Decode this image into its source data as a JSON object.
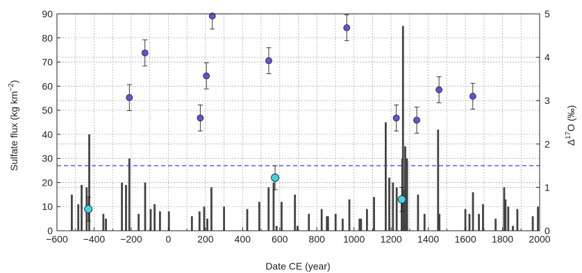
{
  "chart_data": {
    "type": "bar",
    "xlabel": "Date CE (year)",
    "ylabel_left": "Sulfate flux (kg km",
    "ylabel_left_sup": "−2",
    "ylabel_left_end": ")",
    "ylabel_right_delta": "Δ",
    "ylabel_right_sup": "17",
    "ylabel_right_end": "O (‰)",
    "xlim": [
      -600,
      2000
    ],
    "ylim_left": [
      0,
      90
    ],
    "ylim_right": [
      0,
      5
    ],
    "x_ticks": [
      "−600",
      "−400",
      "−200",
      "0",
      "200",
      "400",
      "600",
      "800",
      "1000",
      "1200",
      "1400",
      "1600",
      "1800",
      "2000"
    ],
    "x_tick_values": [
      -600,
      -400,
      -200,
      0,
      200,
      400,
      600,
      800,
      1000,
      1200,
      1400,
      1600,
      1800,
      2000
    ],
    "y_left_ticks": [
      "0",
      "10",
      "20",
      "30",
      "40",
      "50",
      "60",
      "70",
      "80",
      "90"
    ],
    "y_left_tick_values": [
      0,
      10,
      20,
      30,
      40,
      50,
      60,
      70,
      80,
      90
    ],
    "y_right_ticks": [
      "0",
      "1",
      "2",
      "3",
      "4",
      "5"
    ],
    "y_right_tick_values": [
      0,
      1,
      2,
      3,
      4,
      5
    ],
    "grid": true,
    "threshold_line": {
      "value": 27,
      "color": "#3b3bd6",
      "style": "dashed"
    },
    "colors": {
      "bars": "#444444",
      "purple_points": "#6a4fd4",
      "cyan_points": "#3fd3e6",
      "grid": "#aaaaaa"
    },
    "sulfate_bars": [
      {
        "x": -520,
        "y": 15
      },
      {
        "x": -485,
        "y": 11
      },
      {
        "x": -467,
        "y": 19
      },
      {
        "x": -440,
        "y": 18
      },
      {
        "x": -426,
        "y": 40
      },
      {
        "x": -350,
        "y": 7
      },
      {
        "x": -336,
        "y": 5
      },
      {
        "x": -250,
        "y": 20
      },
      {
        "x": -228,
        "y": 19
      },
      {
        "x": -210,
        "y": 30
      },
      {
        "x": -160,
        "y": 7
      },
      {
        "x": -125,
        "y": 20
      },
      {
        "x": -95,
        "y": 9
      },
      {
        "x": -74,
        "y": 11
      },
      {
        "x": -45,
        "y": 8
      },
      {
        "x": 3,
        "y": 8
      },
      {
        "x": 127,
        "y": 6
      },
      {
        "x": 168,
        "y": 8
      },
      {
        "x": 193,
        "y": 10
      },
      {
        "x": 210,
        "y": 5
      },
      {
        "x": 232,
        "y": 18
      },
      {
        "x": 300,
        "y": 10
      },
      {
        "x": 425,
        "y": 9
      },
      {
        "x": 490,
        "y": 12
      },
      {
        "x": 540,
        "y": 18
      },
      {
        "x": 567,
        "y": 20
      },
      {
        "x": 583,
        "y": 2
      },
      {
        "x": 610,
        "y": 12
      },
      {
        "x": 682,
        "y": 15
      },
      {
        "x": 696,
        "y": 2
      },
      {
        "x": 757,
        "y": 7
      },
      {
        "x": 826,
        "y": 9
      },
      {
        "x": 854,
        "y": 6
      },
      {
        "x": 860,
        "y": 6
      },
      {
        "x": 901,
        "y": 7
      },
      {
        "x": 939,
        "y": 5
      },
      {
        "x": 975,
        "y": 13
      },
      {
        "x": 1030,
        "y": 5
      },
      {
        "x": 1038,
        "y": 5
      },
      {
        "x": 1070,
        "y": 9
      },
      {
        "x": 1108,
        "y": 14
      },
      {
        "x": 1171,
        "y": 45
      },
      {
        "x": 1190,
        "y": 22
      },
      {
        "x": 1210,
        "y": 20
      },
      {
        "x": 1230,
        "y": 18
      },
      {
        "x": 1257,
        "y": 13
      },
      {
        "x": 1260,
        "y": 30
      },
      {
        "x": 1264,
        "y": 85
      },
      {
        "x": 1268,
        "y": 17
      },
      {
        "x": 1276,
        "y": 35
      },
      {
        "x": 1285,
        "y": 30
      },
      {
        "x": 1286,
        "y": 29
      },
      {
        "x": 1345,
        "y": 15
      },
      {
        "x": 1380,
        "y": 7
      },
      {
        "x": 1453,
        "y": 42
      },
      {
        "x": 1460,
        "y": 7
      },
      {
        "x": 1600,
        "y": 9
      },
      {
        "x": 1622,
        "y": 7
      },
      {
        "x": 1641,
        "y": 16
      },
      {
        "x": 1673,
        "y": 7
      },
      {
        "x": 1695,
        "y": 11
      },
      {
        "x": 1763,
        "y": 5
      },
      {
        "x": 1809,
        "y": 18
      },
      {
        "x": 1816,
        "y": 13
      },
      {
        "x": 1831,
        "y": 10
      },
      {
        "x": 1856,
        "y": 2
      },
      {
        "x": 1880,
        "y": 9
      },
      {
        "x": 1963,
        "y": 6
      },
      {
        "x": 1991,
        "y": 10
      }
    ],
    "d17o_points": [
      {
        "x": -210,
        "y": 3.07,
        "err": 0.3
      },
      {
        "x": -126,
        "y": 4.1,
        "err": 0.3
      },
      {
        "x": 172,
        "y": 2.6,
        "err": 0.3
      },
      {
        "x": 205,
        "y": 3.57,
        "err": 0.3
      },
      {
        "x": 237,
        "y": 4.95,
        "err": 0.3
      },
      {
        "x": 541,
        "y": 3.92,
        "err": 0.3
      },
      {
        "x": 961,
        "y": 4.68,
        "err": 0.3
      },
      {
        "x": 1228,
        "y": 2.6,
        "err": 0.3
      },
      {
        "x": 1338,
        "y": 2.55,
        "err": 0.3
      },
      {
        "x": 1458,
        "y": 3.25,
        "err": 0.3
      },
      {
        "x": 1640,
        "y": 3.1,
        "err": 0.3
      }
    ],
    "flux_points": [
      {
        "x": -431,
        "y": 9,
        "err": 5
      },
      {
        "x": 575,
        "y": 22,
        "err": 5
      },
      {
        "x": 1258,
        "y": 13,
        "err": 5
      }
    ]
  }
}
